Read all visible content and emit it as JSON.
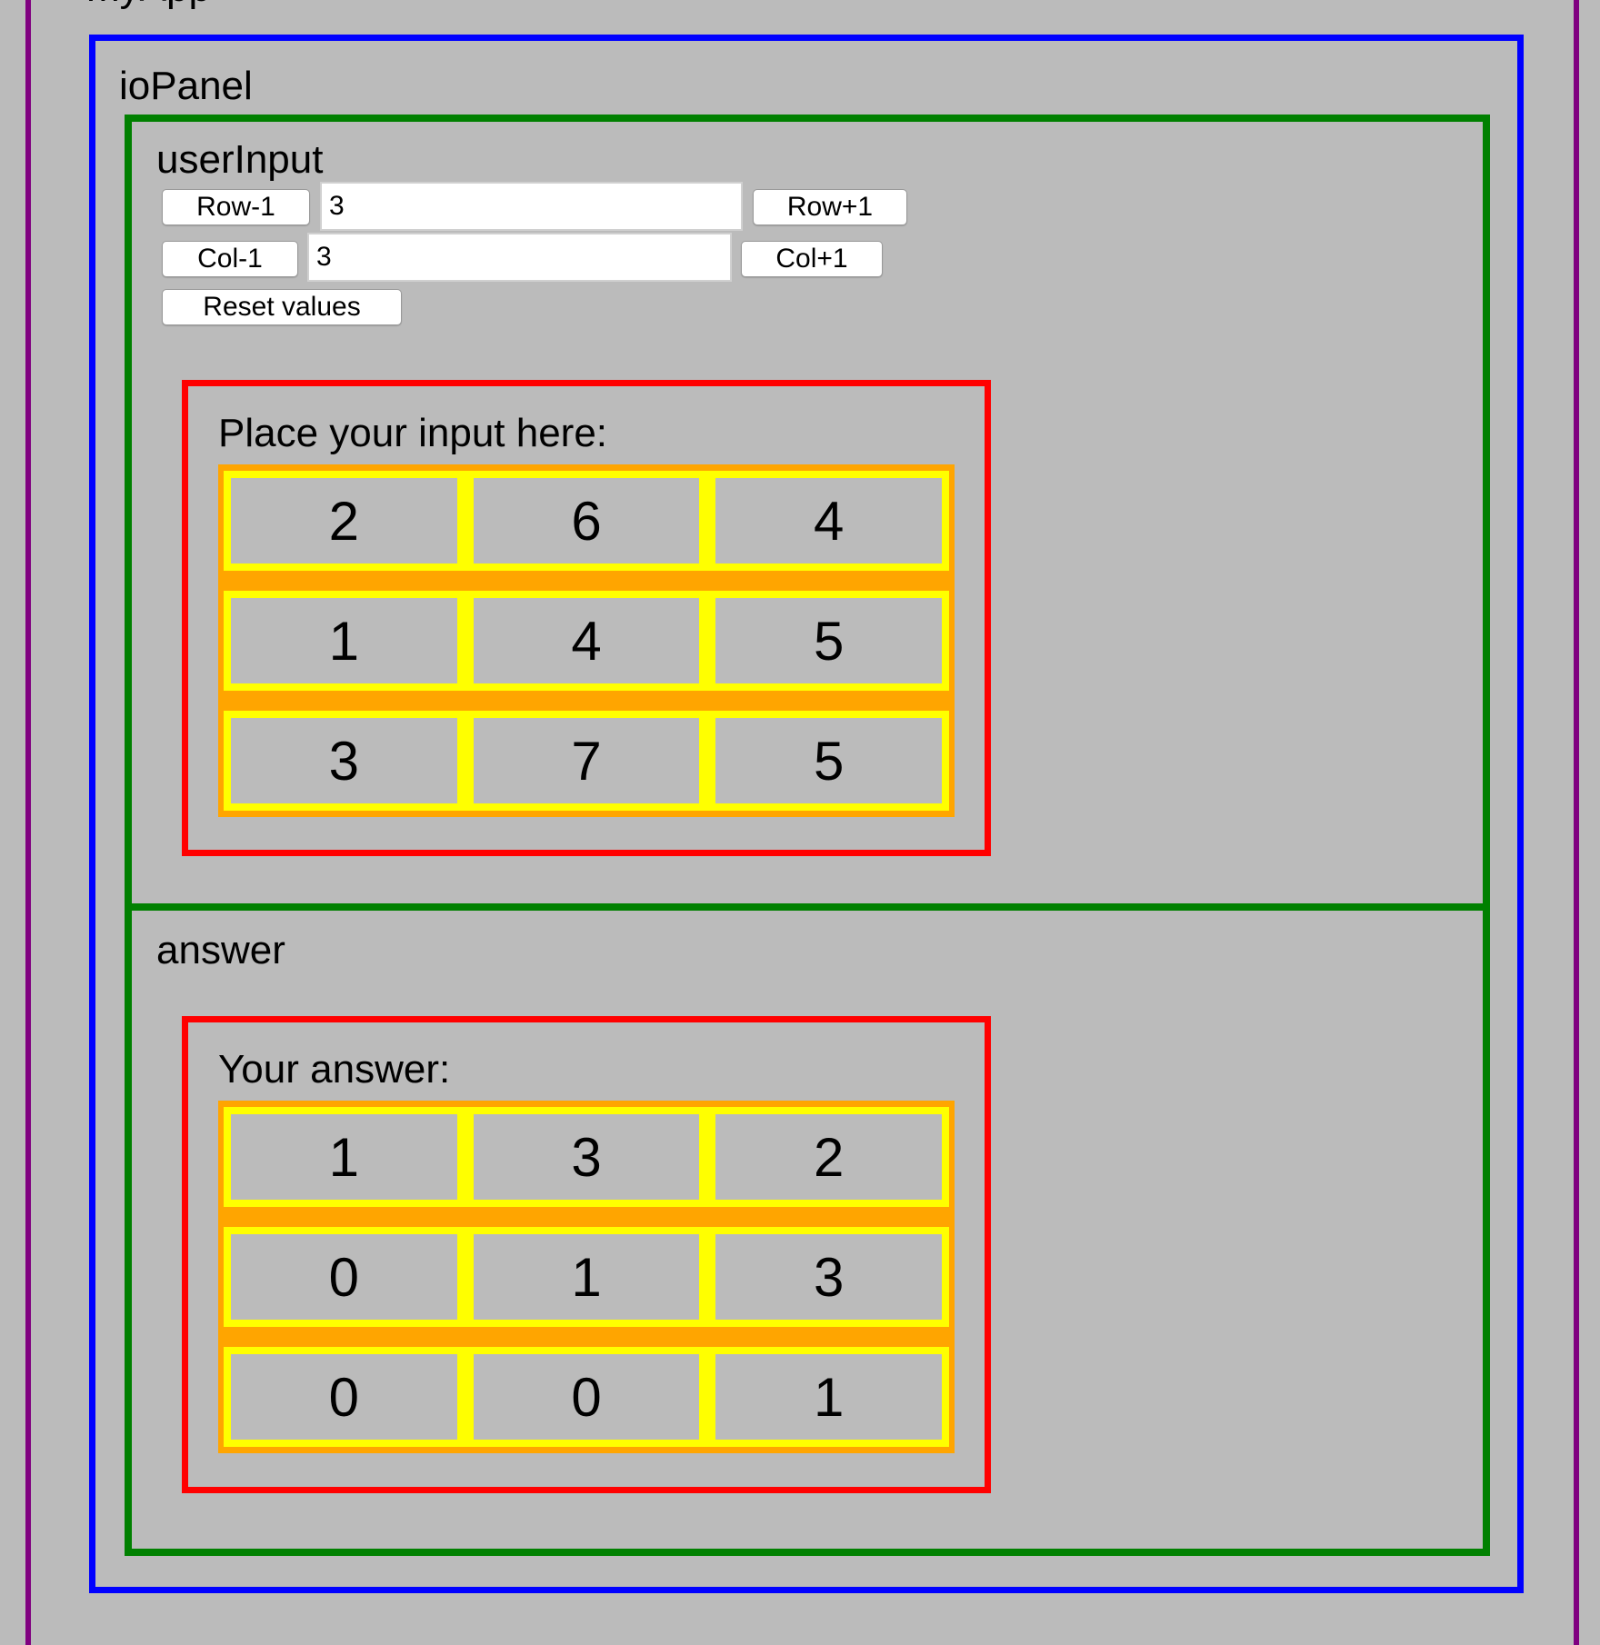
{
  "app": {
    "title": "myApp"
  },
  "io_panel": {
    "title": "ioPanel"
  },
  "user_input": {
    "title": "userInput",
    "row_minus_label": "Row-1",
    "row_value": "3",
    "row_plus_label": "Row+1",
    "col_minus_label": "Col-1",
    "col_value": "3",
    "col_plus_label": "Col+1",
    "reset_label": "Reset values",
    "grid_label": "Place your input here:",
    "grid": [
      [
        "2",
        "6",
        "4"
      ],
      [
        "1",
        "4",
        "5"
      ],
      [
        "3",
        "7",
        "5"
      ]
    ]
  },
  "answer": {
    "title": "answer",
    "grid_label": "Your answer:",
    "grid": [
      [
        "1",
        "3",
        "2"
      ],
      [
        "0",
        "1",
        "3"
      ],
      [
        "0",
        "0",
        "1"
      ]
    ]
  },
  "colors": {
    "background": "#bbbbbb",
    "app_border": "#800080",
    "io_panel_border": "#0000ff",
    "section_border": "#008000",
    "grid_border": "#ff0000",
    "matrix_background": "#ffa500",
    "row_background": "#ffff00"
  }
}
